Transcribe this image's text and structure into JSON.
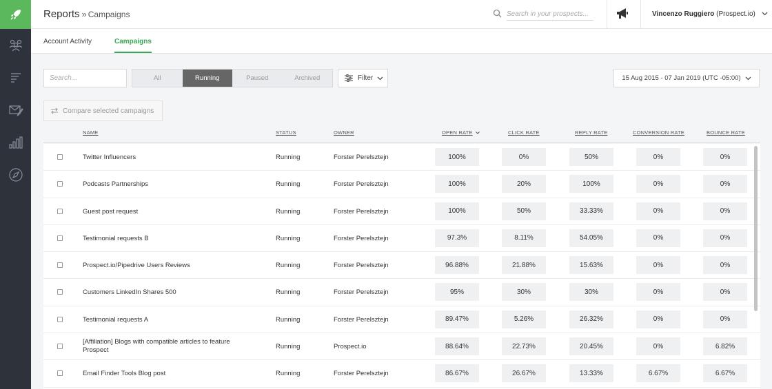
{
  "header": {
    "title": "Reports",
    "separator": "»",
    "subtitle": "Campaigns",
    "search_placeholder": "Search in your prospects...",
    "user_name": "Vincenzo Ruggiero",
    "user_org": "(Prospect.io)"
  },
  "tabs": [
    {
      "label": "Account Activity",
      "active": false
    },
    {
      "label": "Campaigns",
      "active": true
    }
  ],
  "toolbar": {
    "search_placeholder": "Search...",
    "segments": [
      {
        "label": "All",
        "active": false
      },
      {
        "label": "Running",
        "active": true
      },
      {
        "label": "Paused",
        "active": false
      },
      {
        "label": "Archived",
        "active": false
      }
    ],
    "filter_label": "Filter",
    "date_range": "15 Aug 2015 - 07 Jan 2019 (UTC -05:00)",
    "compare_label": "Compare selected campaigns"
  },
  "table": {
    "columns": [
      "NAME",
      "STATUS",
      "OWNER",
      "OPEN RATE",
      "CLICK RATE",
      "REPLY RATE",
      "CONVERSION RATE",
      "BOUNCE RATE"
    ],
    "rows": [
      {
        "name": "Twitter Influencers",
        "status": "Running",
        "owner": "Forster Perelsztejn",
        "open": "100%",
        "click": "0%",
        "reply": "50%",
        "conversion": "0%",
        "bounce": "0%"
      },
      {
        "name": "Podcasts Partnerships",
        "status": "Running",
        "owner": "Forster Perelsztejn",
        "open": "100%",
        "click": "20%",
        "reply": "100%",
        "conversion": "0%",
        "bounce": "0%"
      },
      {
        "name": "Guest post request",
        "status": "Running",
        "owner": "Forster Perelsztejn",
        "open": "100%",
        "click": "50%",
        "reply": "33.33%",
        "conversion": "0%",
        "bounce": "0%"
      },
      {
        "name": "Testimonial requests B",
        "status": "Running",
        "owner": "Forster Perelsztejn",
        "open": "97.3%",
        "click": "8.11%",
        "reply": "54.05%",
        "conversion": "0%",
        "bounce": "0%"
      },
      {
        "name": "Prospect.io/Pipedrive Users Reviews",
        "status": "Running",
        "owner": "Forster Perelsztejn",
        "open": "96.88%",
        "click": "21.88%",
        "reply": "15.63%",
        "conversion": "0%",
        "bounce": "0%"
      },
      {
        "name": "Customers LinkedIn Shares 500",
        "status": "Running",
        "owner": "Forster Perelsztejn",
        "open": "95%",
        "click": "30%",
        "reply": "30%",
        "conversion": "0%",
        "bounce": "0%"
      },
      {
        "name": "Testimonial requests A",
        "status": "Running",
        "owner": "Forster Perelsztejn",
        "open": "89.47%",
        "click": "5.26%",
        "reply": "26.32%",
        "conversion": "0%",
        "bounce": "0%"
      },
      {
        "name": "[Affiliation] Blogs with compatible articles to feature Prospect",
        "status": "Running",
        "owner": "Prospect.io",
        "open": "88.64%",
        "click": "22.73%",
        "reply": "20.45%",
        "conversion": "0%",
        "bounce": "6.82%"
      },
      {
        "name": "Email Finder Tools Blog post",
        "status": "Running",
        "owner": "Forster Perelsztejn",
        "open": "86.67%",
        "click": "26.67%",
        "reply": "13.33%",
        "conversion": "6.67%",
        "bounce": "6.67%"
      }
    ]
  },
  "colors": {
    "brand": "#5cb85c",
    "sidebar": "#2d323b",
    "active_tab": "#3aa757",
    "active_segment": "#666666"
  },
  "icons": [
    "rocket-icon",
    "team-icon",
    "list-icon",
    "mail-edit-icon",
    "bar-chart-icon",
    "compass-icon",
    "search-icon",
    "megaphone-icon",
    "chevron-down-icon",
    "sliders-icon",
    "swap-arrows-icon",
    "sort-down-icon"
  ]
}
